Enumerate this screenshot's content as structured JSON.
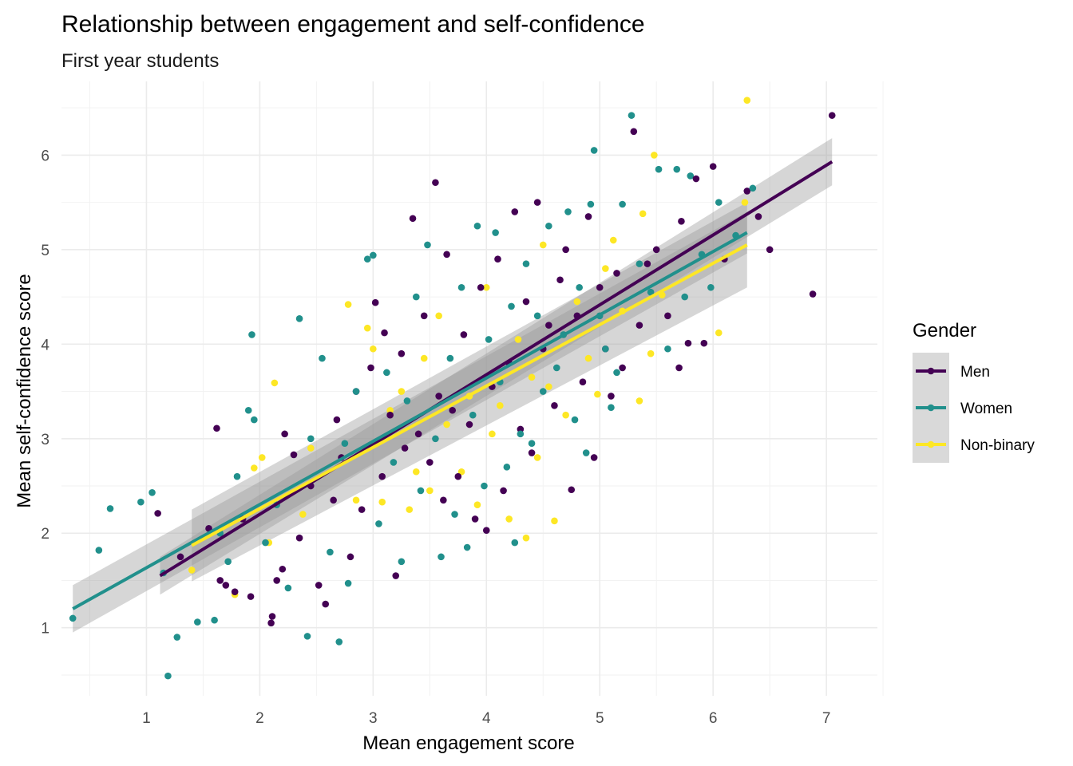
{
  "chart_data": {
    "type": "scatter",
    "title": "Relationship between engagement and self-confidence",
    "subtitle": "First year students",
    "xlabel": "Mean engagement score",
    "ylabel": "Mean self-confidence score",
    "xlim": [
      0.25,
      7.45
    ],
    "ylim": [
      0.28,
      6.78
    ],
    "x_ticks": [
      1,
      2,
      3,
      4,
      5,
      6,
      7
    ],
    "y_ticks": [
      1,
      2,
      3,
      4,
      5,
      6
    ],
    "grid": true,
    "legend": {
      "title": "Gender",
      "placement": "right"
    },
    "series": [
      {
        "name": "Men",
        "color": "#440154",
        "fit": {
          "x": [
            1.12,
            7.05
          ],
          "y": [
            1.55,
            5.93
          ],
          "ci_halfwidth": [
            0.2,
            0.25
          ]
        },
        "points": [
          [
            1.1,
            2.21
          ],
          [
            1.3,
            1.75
          ],
          [
            1.55,
            2.05
          ],
          [
            1.62,
            3.11
          ],
          [
            1.65,
            1.5
          ],
          [
            1.7,
            1.45
          ],
          [
            1.78,
            1.38
          ],
          [
            1.85,
            2.15
          ],
          [
            1.92,
            1.33
          ],
          [
            2.1,
            1.05
          ],
          [
            2.11,
            1.12
          ],
          [
            2.15,
            1.5
          ],
          [
            2.2,
            1.62
          ],
          [
            2.22,
            3.05
          ],
          [
            2.3,
            2.83
          ],
          [
            2.35,
            1.95
          ],
          [
            2.45,
            2.5
          ],
          [
            2.52,
            1.45
          ],
          [
            2.58,
            1.25
          ],
          [
            2.65,
            2.35
          ],
          [
            2.68,
            3.2
          ],
          [
            2.72,
            2.8
          ],
          [
            2.8,
            1.75
          ],
          [
            2.85,
            3.5
          ],
          [
            2.9,
            2.25
          ],
          [
            2.98,
            3.75
          ],
          [
            3.02,
            4.44
          ],
          [
            3.08,
            2.6
          ],
          [
            3.1,
            4.12
          ],
          [
            3.15,
            3.25
          ],
          [
            3.2,
            1.55
          ],
          [
            3.25,
            3.9
          ],
          [
            3.28,
            2.9
          ],
          [
            3.35,
            5.33
          ],
          [
            3.4,
            3.05
          ],
          [
            3.45,
            4.3
          ],
          [
            3.5,
            2.75
          ],
          [
            3.55,
            5.71
          ],
          [
            3.58,
            3.45
          ],
          [
            3.62,
            2.35
          ],
          [
            3.65,
            4.95
          ],
          [
            3.7,
            3.3
          ],
          [
            3.75,
            2.6
          ],
          [
            3.8,
            4.1
          ],
          [
            3.85,
            3.15
          ],
          [
            3.9,
            2.15
          ],
          [
            3.95,
            4.6
          ],
          [
            4.0,
            2.03
          ],
          [
            4.05,
            3.55
          ],
          [
            4.1,
            4.9
          ],
          [
            4.15,
            2.45
          ],
          [
            4.2,
            3.8
          ],
          [
            4.25,
            5.4
          ],
          [
            4.3,
            3.1
          ],
          [
            4.35,
            4.45
          ],
          [
            4.4,
            2.85
          ],
          [
            4.45,
            5.5
          ],
          [
            4.5,
            3.95
          ],
          [
            4.55,
            4.2
          ],
          [
            4.6,
            3.35
          ],
          [
            4.65,
            4.68
          ],
          [
            4.7,
            5.0
          ],
          [
            4.75,
            2.46
          ],
          [
            4.8,
            4.3
          ],
          [
            4.85,
            3.6
          ],
          [
            4.9,
            5.35
          ],
          [
            4.95,
            2.8
          ],
          [
            5.0,
            4.6
          ],
          [
            5.05,
            3.95
          ],
          [
            5.1,
            3.45
          ],
          [
            5.15,
            4.75
          ],
          [
            5.2,
            3.75
          ],
          [
            5.3,
            6.25
          ],
          [
            5.35,
            4.2
          ],
          [
            5.42,
            4.85
          ],
          [
            5.5,
            5.0
          ],
          [
            5.6,
            4.3
          ],
          [
            5.7,
            3.75
          ],
          [
            5.72,
            5.3
          ],
          [
            5.78,
            4.01
          ],
          [
            5.85,
            5.75
          ],
          [
            5.92,
            4.01
          ],
          [
            6.0,
            5.88
          ],
          [
            6.1,
            4.9
          ],
          [
            6.3,
            5.62
          ],
          [
            6.4,
            5.35
          ],
          [
            6.5,
            5.0
          ],
          [
            6.88,
            4.53
          ],
          [
            7.05,
            6.42
          ]
        ]
      },
      {
        "name": "Women",
        "color": "#21908C",
        "fit": {
          "x": [
            0.35,
            6.3
          ],
          "y": [
            1.2,
            5.18
          ],
          "ci_halfwidth": [
            0.25,
            0.22
          ]
        },
        "points": [
          [
            0.35,
            1.1
          ],
          [
            0.58,
            1.82
          ],
          [
            0.68,
            2.26
          ],
          [
            0.95,
            2.33
          ],
          [
            1.05,
            2.43
          ],
          [
            1.15,
            1.58
          ],
          [
            1.19,
            0.49
          ],
          [
            1.27,
            0.9
          ],
          [
            1.45,
            1.06
          ],
          [
            1.6,
            1.08
          ],
          [
            1.65,
            2.0
          ],
          [
            1.72,
            1.7
          ],
          [
            1.8,
            2.6
          ],
          [
            1.9,
            3.3
          ],
          [
            1.93,
            4.1
          ],
          [
            1.95,
            3.2
          ],
          [
            2.05,
            1.9
          ],
          [
            2.15,
            2.3
          ],
          [
            2.25,
            1.42
          ],
          [
            2.35,
            4.27
          ],
          [
            2.42,
            0.91
          ],
          [
            2.45,
            3.0
          ],
          [
            2.55,
            3.85
          ],
          [
            2.62,
            1.8
          ],
          [
            2.7,
            0.85
          ],
          [
            2.75,
            2.95
          ],
          [
            2.78,
            1.47
          ],
          [
            2.85,
            3.5
          ],
          [
            2.95,
            4.9
          ],
          [
            3.0,
            4.94
          ],
          [
            3.05,
            2.1
          ],
          [
            3.12,
            3.7
          ],
          [
            3.18,
            2.75
          ],
          [
            3.25,
            1.7
          ],
          [
            3.3,
            3.4
          ],
          [
            3.38,
            4.5
          ],
          [
            3.42,
            2.45
          ],
          [
            3.48,
            5.05
          ],
          [
            3.55,
            3.0
          ],
          [
            3.6,
            1.75
          ],
          [
            3.68,
            3.85
          ],
          [
            3.72,
            2.2
          ],
          [
            3.78,
            4.6
          ],
          [
            3.83,
            1.85
          ],
          [
            3.88,
            3.25
          ],
          [
            3.92,
            5.25
          ],
          [
            3.98,
            2.5
          ],
          [
            4.02,
            4.05
          ],
          [
            4.08,
            5.18
          ],
          [
            4.12,
            3.6
          ],
          [
            4.18,
            2.7
          ],
          [
            4.22,
            4.4
          ],
          [
            4.25,
            1.9
          ],
          [
            4.3,
            3.05
          ],
          [
            4.35,
            4.85
          ],
          [
            4.4,
            2.95
          ],
          [
            4.45,
            4.3
          ],
          [
            4.5,
            3.5
          ],
          [
            4.55,
            5.25
          ],
          [
            4.62,
            3.75
          ],
          [
            4.68,
            4.1
          ],
          [
            4.72,
            5.4
          ],
          [
            4.78,
            3.2
          ],
          [
            4.82,
            4.6
          ],
          [
            4.88,
            2.85
          ],
          [
            4.92,
            5.48
          ],
          [
            4.95,
            6.05
          ],
          [
            5.0,
            4.3
          ],
          [
            5.05,
            3.95
          ],
          [
            5.1,
            3.33
          ],
          [
            5.15,
            3.7
          ],
          [
            5.2,
            5.48
          ],
          [
            5.28,
            6.42
          ],
          [
            5.35,
            4.85
          ],
          [
            5.45,
            4.55
          ],
          [
            5.52,
            5.85
          ],
          [
            5.6,
            3.95
          ],
          [
            5.68,
            5.85
          ],
          [
            5.75,
            4.5
          ],
          [
            5.8,
            5.78
          ],
          [
            5.9,
            4.95
          ],
          [
            5.98,
            4.6
          ],
          [
            6.05,
            5.5
          ],
          [
            6.2,
            5.15
          ],
          [
            6.35,
            5.65
          ]
        ]
      },
      {
        "name": "Non-binary",
        "color": "#FDE725",
        "fit": {
          "x": [
            1.4,
            6.3
          ],
          "y": [
            1.87,
            5.05
          ],
          "ci_halfwidth": [
            0.38,
            0.45
          ]
        },
        "points": [
          [
            1.4,
            1.61
          ],
          [
            1.78,
            1.35
          ],
          [
            1.95,
            2.69
          ],
          [
            2.02,
            2.8
          ],
          [
            2.08,
            1.9
          ],
          [
            2.13,
            3.59
          ],
          [
            2.38,
            2.2
          ],
          [
            2.45,
            2.9
          ],
          [
            2.78,
            4.42
          ],
          [
            2.85,
            2.35
          ],
          [
            2.95,
            4.17
          ],
          [
            3.0,
            3.95
          ],
          [
            3.08,
            2.33
          ],
          [
            3.15,
            3.3
          ],
          [
            3.25,
            3.5
          ],
          [
            3.32,
            2.25
          ],
          [
            3.38,
            2.65
          ],
          [
            3.45,
            3.85
          ],
          [
            3.5,
            2.45
          ],
          [
            3.58,
            4.3
          ],
          [
            3.65,
            3.15
          ],
          [
            3.78,
            2.65
          ],
          [
            3.85,
            3.45
          ],
          [
            3.92,
            2.3
          ],
          [
            4.0,
            4.6
          ],
          [
            4.05,
            3.05
          ],
          [
            4.12,
            3.35
          ],
          [
            4.2,
            2.15
          ],
          [
            4.28,
            4.05
          ],
          [
            4.35,
            1.95
          ],
          [
            4.4,
            3.65
          ],
          [
            4.45,
            2.8
          ],
          [
            4.5,
            5.05
          ],
          [
            4.55,
            3.55
          ],
          [
            4.6,
            2.13
          ],
          [
            4.7,
            3.25
          ],
          [
            4.8,
            4.45
          ],
          [
            4.9,
            3.85
          ],
          [
            4.98,
            3.47
          ],
          [
            5.05,
            4.8
          ],
          [
            5.12,
            5.1
          ],
          [
            5.2,
            4.35
          ],
          [
            5.35,
            3.4
          ],
          [
            5.38,
            5.38
          ],
          [
            5.45,
            3.9
          ],
          [
            5.48,
            6.0
          ],
          [
            5.55,
            4.52
          ],
          [
            6.05,
            4.12
          ],
          [
            6.28,
            5.5
          ],
          [
            6.3,
            6.58
          ]
        ]
      }
    ]
  }
}
